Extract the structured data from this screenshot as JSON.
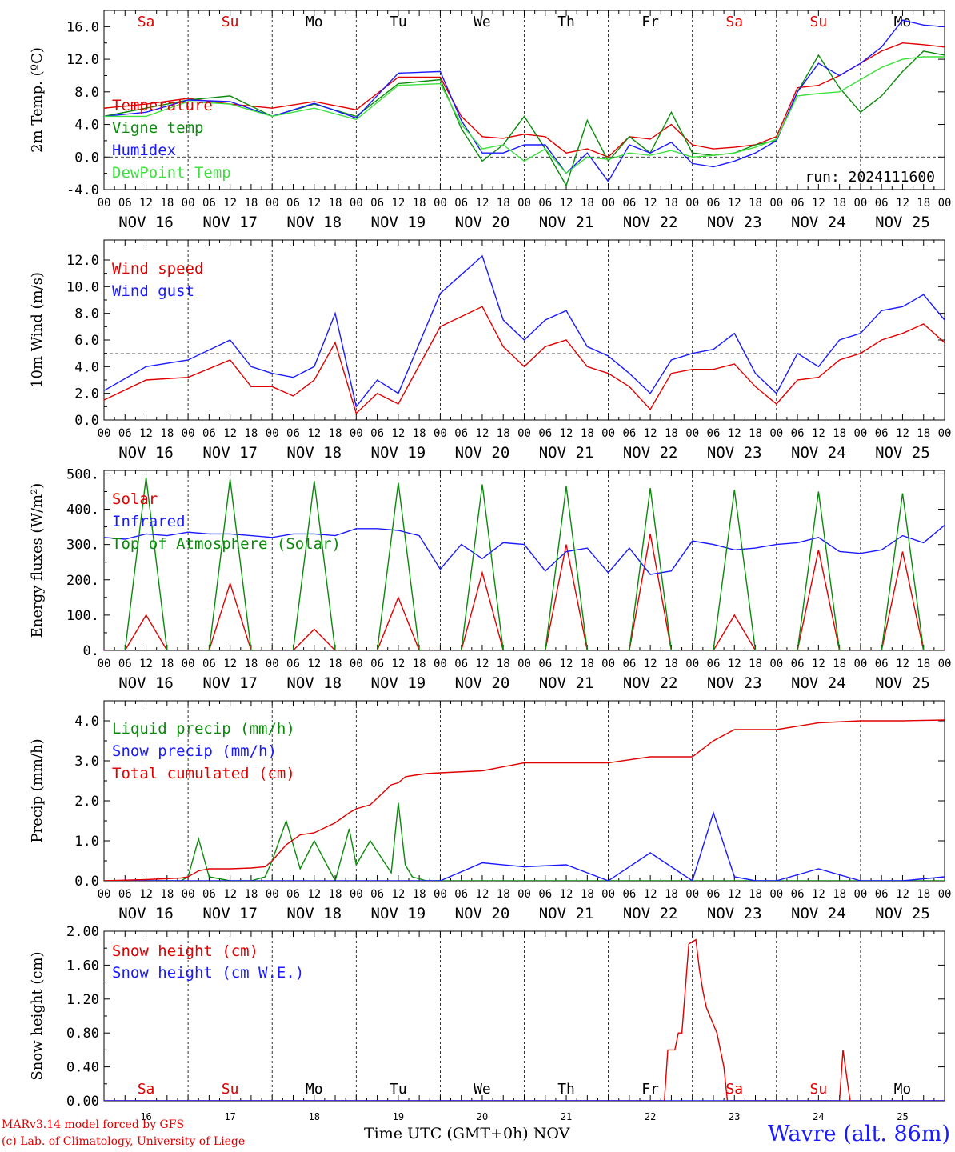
{
  "chart_data": [
    {
      "type": "line",
      "ylabel": "2m Temp. (ºC)",
      "ylim": [
        -4,
        18
      ],
      "yticks": [
        "-4.0",
        "0.0",
        "4.0",
        "8.0",
        "12.0",
        "16.0"
      ],
      "day_labels": [
        "Sa",
        "Su",
        "Mo",
        "Tu",
        "We",
        "Th",
        "Fr",
        "Sa",
        "Su",
        "Mo"
      ],
      "day_label_colors": [
        "#e00000",
        "#e00000",
        "#000000",
        "#000000",
        "#000000",
        "#000000",
        "#000000",
        "#e00000",
        "#e00000",
        "#000000"
      ],
      "run_label": "run: 2024111600",
      "reference_lines": [
        0
      ],
      "x_hours": [
        0,
        12,
        24,
        36,
        48,
        60,
        72,
        84,
        96,
        102,
        108,
        114,
        120,
        126,
        132,
        138,
        144,
        150,
        156,
        162,
        168,
        174,
        180,
        186,
        192,
        198,
        204,
        210,
        216,
        222,
        228,
        234,
        240
      ],
      "series": [
        {
          "name": "Temperature",
          "color": "#e00000",
          "values": [
            6.0,
            6.5,
            7.2,
            6.5,
            6.0,
            6.8,
            5.8,
            9.8,
            9.8,
            5.0,
            2.5,
            2.3,
            2.8,
            2.5,
            0.5,
            1.0,
            0.0,
            2.5,
            2.2,
            4.0,
            1.5,
            1.0,
            1.2,
            1.5,
            2.5,
            8.5,
            8.8,
            10.0,
            11.5,
            13.0,
            14.0,
            13.8,
            13.5
          ]
        },
        {
          "name": "Vigne temp",
          "color": "#0a8a0a",
          "values": [
            5.0,
            6.0,
            7.0,
            7.5,
            5.0,
            6.5,
            5.0,
            9.0,
            9.5,
            3.5,
            -0.5,
            1.5,
            5.0,
            1.0,
            -3.5,
            4.5,
            -0.5,
            2.5,
            0.5,
            5.5,
            0.5,
            0.2,
            0.5,
            1.5,
            2.0,
            8.0,
            12.5,
            8.5,
            5.5,
            7.5,
            10.5,
            13.0,
            12.5
          ]
        },
        {
          "name": "Humidex",
          "color": "#1a1aff",
          "values": [
            5.0,
            5.5,
            7.0,
            6.8,
            5.0,
            6.6,
            4.8,
            10.3,
            10.5,
            4.5,
            0.5,
            0.5,
            1.5,
            1.5,
            -2.0,
            0.5,
            -3.0,
            1.5,
            0.5,
            1.8,
            -0.8,
            -1.2,
            -0.5,
            0.5,
            2.0,
            8.0,
            11.5,
            10.0,
            11.5,
            13.5,
            16.8,
            16.2,
            16.0
          ]
        },
        {
          "name": "DewPoint Temp",
          "color": "#3ee03e",
          "values": [
            5.0,
            5.0,
            6.8,
            6.5,
            5.0,
            6.0,
            4.6,
            8.8,
            9.0,
            4.0,
            1.0,
            1.5,
            -0.5,
            1.0,
            -2.0,
            0.0,
            -0.3,
            0.5,
            0.2,
            0.8,
            0.0,
            0.2,
            0.5,
            1.2,
            2.2,
            7.5,
            7.8,
            8.0,
            9.5,
            11.0,
            12.0,
            12.3,
            12.3
          ]
        }
      ]
    },
    {
      "type": "line",
      "ylabel": "10m Wind (m/s)",
      "ylim": [
        0,
        13.5
      ],
      "yticks": [
        "0.0",
        "2.0",
        "4.0",
        "6.0",
        "8.0",
        "10.0",
        "12.0"
      ],
      "reference_lines": [
        5
      ],
      "x_hours": [
        0,
        12,
        24,
        36,
        42,
        48,
        54,
        60,
        66,
        72,
        78,
        84,
        96,
        108,
        114,
        120,
        126,
        132,
        138,
        144,
        150,
        156,
        162,
        168,
        174,
        180,
        186,
        192,
        198,
        204,
        210,
        216,
        222,
        228,
        234,
        240
      ],
      "series": [
        {
          "name": "Wind speed",
          "color": "#e00000",
          "values": [
            1.5,
            3.0,
            3.2,
            4.5,
            2.5,
            2.5,
            1.8,
            3.0,
            5.8,
            0.5,
            2.0,
            1.2,
            7.0,
            8.5,
            5.5,
            4.0,
            5.5,
            6.0,
            4.0,
            3.5,
            2.5,
            0.8,
            3.5,
            3.8,
            3.8,
            4.2,
            2.5,
            1.2,
            3.0,
            3.2,
            4.5,
            5.0,
            6.0,
            6.5,
            7.2,
            5.8
          ]
        },
        {
          "name": "Wind gust",
          "color": "#1a1aff",
          "values": [
            2.2,
            4.0,
            4.5,
            6.0,
            4.0,
            3.5,
            3.2,
            4.0,
            8.0,
            1.0,
            3.0,
            2.0,
            9.5,
            12.3,
            7.5,
            6.0,
            7.5,
            8.2,
            5.5,
            4.8,
            3.5,
            2.0,
            4.5,
            5.0,
            5.3,
            6.5,
            3.5,
            2.0,
            5.0,
            4.0,
            6.0,
            6.5,
            8.2,
            8.5,
            9.4,
            7.5
          ]
        }
      ]
    },
    {
      "type": "line",
      "ylabel": "Energy fluxes (W/m²)",
      "ylim": [
        0,
        510
      ],
      "yticks": [
        "0.",
        "100.",
        "200.",
        "300.",
        "400.",
        "500."
      ],
      "x_hours": [
        0,
        6,
        12,
        18,
        24,
        30,
        36,
        42,
        48,
        54,
        60,
        66,
        72,
        78,
        84,
        90,
        96,
        102,
        108,
        114,
        120,
        126,
        132,
        138,
        144,
        150,
        156,
        162,
        168,
        174,
        180,
        186,
        192,
        198,
        204,
        210,
        216,
        222,
        228,
        234,
        240
      ],
      "series": [
        {
          "name": "Solar",
          "color": "#e00000",
          "values": [
            0,
            0,
            100,
            0,
            0,
            0,
            190,
            0,
            0,
            0,
            60,
            0,
            0,
            0,
            150,
            0,
            0,
            0,
            220,
            0,
            0,
            0,
            300,
            0,
            0,
            0,
            330,
            0,
            0,
            0,
            100,
            0,
            0,
            0,
            285,
            0,
            0,
            0,
            280,
            0,
            0
          ]
        },
        {
          "name": "Infrared",
          "color": "#1a1aff",
          "values": [
            320,
            315,
            330,
            325,
            335,
            330,
            330,
            325,
            320,
            330,
            330,
            325,
            345,
            345,
            340,
            325,
            230,
            300,
            260,
            305,
            300,
            225,
            280,
            290,
            220,
            290,
            215,
            225,
            310,
            300,
            285,
            290,
            300,
            305,
            320,
            280,
            275,
            285,
            325,
            305,
            355
          ]
        },
        {
          "name": "Top of Atmosphere (Solar)",
          "color": "#0a8a0a",
          "values": [
            0,
            0,
            490,
            0,
            0,
            0,
            485,
            0,
            0,
            0,
            480,
            0,
            0,
            0,
            475,
            0,
            0,
            0,
            470,
            0,
            0,
            0,
            465,
            0,
            0,
            0,
            460,
            0,
            0,
            0,
            455,
            0,
            0,
            0,
            450,
            0,
            0,
            0,
            445,
            0,
            0
          ]
        }
      ]
    },
    {
      "type": "line",
      "ylabel": "Precip (mm/h)",
      "ylim": [
        0,
        4.5
      ],
      "yticks": [
        "0.0",
        "1.0",
        "2.0",
        "3.0",
        "4.0"
      ],
      "x_hours": [
        0,
        12,
        22,
        24,
        27,
        30,
        36,
        42,
        46,
        48,
        52,
        56,
        60,
        66,
        70,
        72,
        76,
        82,
        84,
        86,
        88,
        92,
        96,
        108,
        120,
        132,
        144,
        156,
        168,
        174,
        180,
        186,
        192,
        204,
        216,
        228,
        240
      ],
      "series": [
        {
          "name": "Liquid precip (mm/h)",
          "color": "#0a8a0a",
          "values": [
            0,
            0,
            0,
            0.1,
            1.05,
            0.1,
            0,
            0,
            0.1,
            0.5,
            1.5,
            0.3,
            1.0,
            0,
            1.3,
            0.4,
            1.0,
            0.2,
            1.95,
            0.4,
            0.1,
            0,
            0,
            0,
            0,
            0,
            0,
            0,
            0,
            0,
            0,
            0,
            0,
            0,
            0,
            0,
            0
          ]
        },
        {
          "name": "Snow precip (mm/h)",
          "color": "#1a1aff",
          "values": [
            0,
            0,
            0,
            0,
            0,
            0,
            0,
            0,
            0,
            0,
            0,
            0,
            0,
            0,
            0,
            0,
            0,
            0,
            0,
            0,
            0,
            0,
            0,
            0.45,
            0.35,
            0.4,
            0,
            0.7,
            0,
            1.7,
            0.1,
            0,
            0,
            0.3,
            0,
            0,
            0.1
          ]
        },
        {
          "name": "Total cumulated (cm)",
          "color": "#e00000",
          "values": [
            0,
            0.03,
            0.07,
            0.1,
            0.25,
            0.3,
            0.3,
            0.32,
            0.35,
            0.5,
            0.9,
            1.15,
            1.2,
            1.45,
            1.7,
            1.8,
            1.9,
            2.4,
            2.45,
            2.6,
            2.63,
            2.68,
            2.7,
            2.75,
            2.95,
            2.95,
            2.95,
            3.1,
            3.1,
            3.5,
            3.78,
            3.78,
            3.78,
            3.95,
            4.0,
            4.0,
            4.02
          ]
        }
      ]
    },
    {
      "type": "line",
      "ylabel": "Snow height (cm)",
      "ylim": [
        0,
        2.0
      ],
      "yticks": [
        "0.00",
        "0.40",
        "0.80",
        "1.20",
        "1.60",
        "2.00"
      ],
      "day_labels": [
        "Sa",
        "Su",
        "Mo",
        "Tu",
        "We",
        "Th",
        "Fr",
        "Sa",
        "Su",
        "Mo"
      ],
      "day_label_colors": [
        "#e00000",
        "#e00000",
        "#000000",
        "#000000",
        "#000000",
        "#000000",
        "#000000",
        "#e00000",
        "#e00000",
        "#000000"
      ],
      "day_numbers": [
        "16",
        "17",
        "18",
        "19",
        "20",
        "21",
        "22",
        "23",
        "24",
        "25"
      ],
      "x_hours": [
        0,
        160,
        161,
        163,
        164,
        165,
        167,
        169,
        170,
        171,
        172,
        173,
        175,
        177,
        178,
        210,
        211,
        212,
        213,
        240
      ],
      "series": [
        {
          "name": "Snow height (cm)",
          "color": "#e00000",
          "values": [
            0,
            0,
            0.6,
            0.6,
            0.8,
            0.8,
            1.85,
            1.9,
            1.55,
            1.3,
            1.1,
            1.0,
            0.8,
            0.4,
            0,
            0,
            0.6,
            0.3,
            0,
            0
          ]
        },
        {
          "name": "Snow height (cm W.E.)",
          "color": "#1a1aff",
          "values": [
            0,
            0,
            0,
            0,
            0,
            0,
            0,
            0,
            0,
            0,
            0,
            0,
            0,
            0,
            0,
            0,
            0,
            0,
            0,
            0
          ]
        }
      ]
    }
  ],
  "x_axis": {
    "hour_ticks": [
      "00",
      "06",
      "12",
      "18"
    ],
    "end_tick": "00",
    "dates": [
      "NOV 16",
      "NOV 17",
      "NOV 18",
      "NOV 19",
      "NOV 20",
      "NOV 21",
      "NOV 22",
      "NOV 23",
      "NOV 24",
      "NOV 25"
    ]
  },
  "footer": {
    "credit_line1": "MARv3.14 model forced by GFS",
    "credit_line2": "(c) Lab. of Climatology, University of Liege",
    "axis_title": "Time UTC (GMT+0h) NOV",
    "station": "Wavre (alt. 86m)"
  }
}
